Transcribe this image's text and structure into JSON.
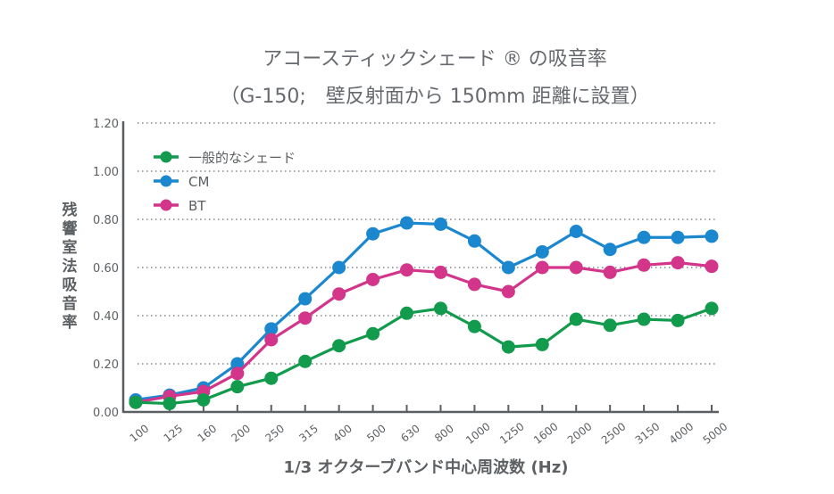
{
  "chart_data": {
    "type": "line",
    "title": "アコースティックシェード ® の吸音率",
    "subtitle": "（G-150;　壁反射面から 150mm 距離に設置）",
    "xlabel": "1/3 オクターブバンド中心周波数 (Hz)",
    "ylabel": "残響室法吸音率",
    "categories": [
      "100",
      "125",
      "160",
      "200",
      "250",
      "315",
      "400",
      "500",
      "630",
      "800",
      "1000",
      "1250",
      "1600",
      "2000",
      "2500",
      "3150",
      "4000",
      "5000"
    ],
    "yticks": [
      "0.00",
      "0.20",
      "0.40",
      "0.60",
      "0.80",
      "1.00",
      "1.20"
    ],
    "ylim": [
      0,
      1.2
    ],
    "grid": "horizontal-dotted",
    "legend_position": "top-left",
    "series": [
      {
        "name": "一般的なシェード",
        "color": "#129b4c",
        "values": [
          0.04,
          0.035,
          0.05,
          0.105,
          0.14,
          0.21,
          0.275,
          0.325,
          0.41,
          0.43,
          0.355,
          0.27,
          0.28,
          0.385,
          0.36,
          0.385,
          0.38,
          0.43
        ]
      },
      {
        "name": "CM",
        "color": "#1a87cf",
        "values": [
          0.05,
          0.07,
          0.1,
          0.2,
          0.345,
          0.47,
          0.6,
          0.74,
          0.785,
          0.78,
          0.71,
          0.6,
          0.665,
          0.75,
          0.675,
          0.725,
          0.725,
          0.73
        ]
      },
      {
        "name": "BT",
        "color": "#d3358a",
        "values": [
          0.04,
          0.065,
          0.085,
          0.16,
          0.3,
          0.39,
          0.49,
          0.55,
          0.59,
          0.58,
          0.53,
          0.5,
          0.6,
          0.6,
          0.58,
          0.61,
          0.62,
          0.605
        ]
      }
    ]
  }
}
